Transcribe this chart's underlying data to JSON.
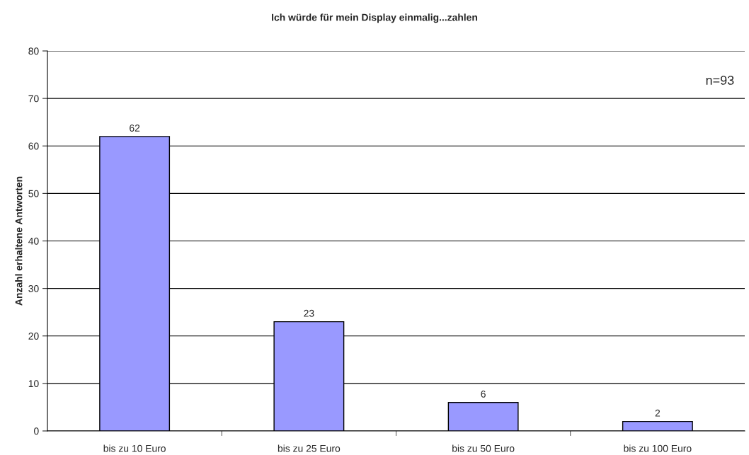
{
  "chart_data": {
    "type": "bar",
    "title": "Ich würde für mein Display einmalig...zahlen",
    "ylabel": "Anzahl erhaltene Antworten",
    "categories": [
      "bis zu 10 Euro",
      "bis zu 25 Euro",
      "bis zu 50 Euro",
      "bis zu 100 Euro"
    ],
    "values": [
      62,
      23,
      6,
      2
    ],
    "color": "#9999ff",
    "ylim": [
      0,
      80
    ],
    "yticks": [
      0,
      10,
      20,
      30,
      40,
      50,
      60,
      70,
      80
    ],
    "grid": "y",
    "data_labels": true,
    "legend": false,
    "annotations": [
      "n=93"
    ]
  }
}
